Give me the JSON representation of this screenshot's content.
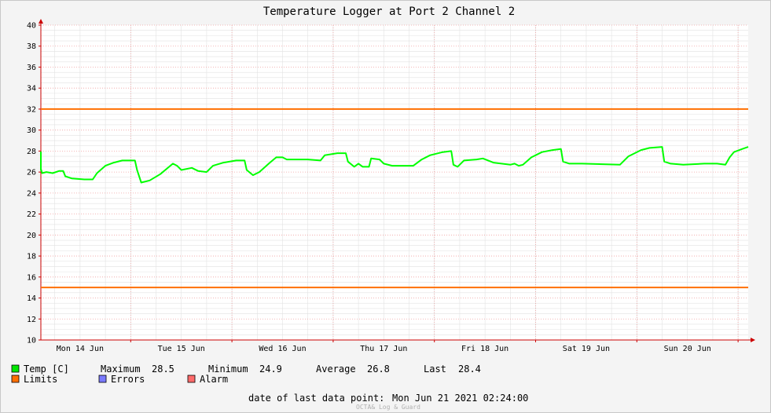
{
  "chart_data": {
    "type": "line",
    "title": "Temperature Logger at Port 2 Channel 2",
    "ylim": [
      10,
      40
    ],
    "yticks": [
      "10",
      "12",
      "14",
      "16",
      "18",
      "20",
      "22",
      "24",
      "26",
      "28",
      "30",
      "32",
      "34",
      "36",
      "38",
      "40"
    ],
    "x_range": [
      "Mon Jun 14 2021 00:00",
      "Mon Jun 21 2021 02:24"
    ],
    "x_day_labels": [
      "Mon 14 Jun",
      "Tue 15 Jun",
      "Wed 16 Jun",
      "Thu 17 Jun",
      "Fri 18 Jun",
      "Sat 19 Jun",
      "Sun 20 Jun"
    ],
    "grid": true,
    "series": [
      {
        "name": "Temp [C]",
        "color": "#00ff00",
        "points": [
          [
            "06-13 21:00",
            27.8
          ],
          [
            "06-13 23:00",
            27.8
          ],
          [
            "06-14 00:00",
            27.9
          ],
          [
            "06-14 00:30",
            27.0
          ],
          [
            "06-14 01:30",
            26.2
          ],
          [
            "06-14 02:30",
            26.3
          ],
          [
            "06-14 03:00",
            25.9
          ],
          [
            "06-14 04:00",
            26.0
          ],
          [
            "06-14 05:30",
            25.9
          ],
          [
            "06-14 07:00",
            26.1
          ],
          [
            "06-14 08:00",
            26.1
          ],
          [
            "06-14 08:30",
            25.6
          ],
          [
            "06-14 10:00",
            25.4
          ],
          [
            "06-14 13:00",
            25.3
          ],
          [
            "06-14 15:00",
            25.3
          ],
          [
            "06-14 16:00",
            25.9
          ],
          [
            "06-14 18:00",
            26.6
          ],
          [
            "06-14 20:00",
            26.9
          ],
          [
            "06-14 22:00",
            27.1
          ],
          [
            "06-15 01:00",
            27.1
          ],
          [
            "06-15 01:30",
            26.2
          ],
          [
            "06-15 02:30",
            25.0
          ],
          [
            "06-15 04:30",
            25.2
          ],
          [
            "06-15 07:00",
            25.8
          ],
          [
            "06-15 10:00",
            26.8
          ],
          [
            "06-15 11:00",
            26.6
          ],
          [
            "06-15 12:00",
            26.2
          ],
          [
            "06-15 14:30",
            26.4
          ],
          [
            "06-15 16:00",
            26.1
          ],
          [
            "06-15 18:00",
            26.0
          ],
          [
            "06-15 19:30",
            26.6
          ],
          [
            "06-15 22:00",
            26.9
          ],
          [
            "06-16 01:00",
            27.1
          ],
          [
            "06-16 03:00",
            27.1
          ],
          [
            "06-16 03:30",
            26.2
          ],
          [
            "06-16 05:00",
            25.7
          ],
          [
            "06-16 06:30",
            26.0
          ],
          [
            "06-16 09:00",
            26.9
          ],
          [
            "06-16 10:30",
            27.4
          ],
          [
            "06-16 12:00",
            27.4
          ],
          [
            "06-16 13:00",
            27.2
          ],
          [
            "06-16 18:00",
            27.2
          ],
          [
            "06-16 21:00",
            27.1
          ],
          [
            "06-16 22:00",
            27.6
          ],
          [
            "06-17 01:00",
            27.8
          ],
          [
            "06-17 03:00",
            27.8
          ],
          [
            "06-17 03:30",
            27.0
          ],
          [
            "06-17 05:00",
            26.5
          ],
          [
            "06-17 06:00",
            26.8
          ],
          [
            "06-17 07:00",
            26.5
          ],
          [
            "06-17 08:30",
            26.5
          ],
          [
            "06-17 09:00",
            27.3
          ],
          [
            "06-17 11:00",
            27.2
          ],
          [
            "06-17 12:00",
            26.8
          ],
          [
            "06-17 14:00",
            26.6
          ],
          [
            "06-17 19:00",
            26.6
          ],
          [
            "06-17 21:00",
            27.2
          ],
          [
            "06-17 23:00",
            27.6
          ],
          [
            "06-18 02:00",
            27.9
          ],
          [
            "06-18 04:00",
            28.0
          ],
          [
            "06-18 04:30",
            26.7
          ],
          [
            "06-18 05:30",
            26.5
          ],
          [
            "06-18 07:00",
            27.1
          ],
          [
            "06-18 10:00",
            27.2
          ],
          [
            "06-18 11:30",
            27.3
          ],
          [
            "06-18 14:00",
            26.9
          ],
          [
            "06-18 18:00",
            26.7
          ],
          [
            "06-18 19:00",
            26.8
          ],
          [
            "06-18 20:00",
            26.6
          ],
          [
            "06-18 21:00",
            26.7
          ],
          [
            "06-18 23:00",
            27.4
          ],
          [
            "06-19 01:30",
            27.9
          ],
          [
            "06-19 04:00",
            28.1
          ],
          [
            "06-19 06:00",
            28.2
          ],
          [
            "06-19 06:30",
            27.0
          ],
          [
            "06-19 08:00",
            26.8
          ],
          [
            "06-19 11:00",
            26.8
          ],
          [
            "06-19 20:00",
            26.7
          ],
          [
            "06-19 22:00",
            27.5
          ],
          [
            "06-20 01:00",
            28.1
          ],
          [
            "06-20 03:00",
            28.3
          ],
          [
            "06-20 06:00",
            28.4
          ],
          [
            "06-20 06:30",
            27.0
          ],
          [
            "06-20 08:00",
            26.8
          ],
          [
            "06-20 11:00",
            26.7
          ],
          [
            "06-20 16:00",
            26.8
          ],
          [
            "06-20 19:00",
            26.8
          ],
          [
            "06-20 21:00",
            26.7
          ],
          [
            "06-20 22:00",
            27.4
          ],
          [
            "06-20 23:00",
            27.9
          ],
          [
            "06-21 01:00",
            28.2
          ],
          [
            "06-21 02:24",
            28.4
          ]
        ]
      }
    ],
    "limits": {
      "name": "Limits",
      "color": "#ff6f00",
      "values": [
        32,
        15
      ]
    },
    "legend": [
      {
        "name": "Temp [C]",
        "color": "#00e600"
      },
      {
        "name": "Limits",
        "color": "#ff6f00"
      },
      {
        "name": "Errors",
        "color": "#7a7aff"
      },
      {
        "name": "Alarm",
        "color": "#ff6a6a"
      }
    ],
    "stats": {
      "maximum_label": "Maximum",
      "maximum": "28.5",
      "minimum_label": "Minimum",
      "minimum": "24.9",
      "average_label": "Average",
      "average": "26.8",
      "last_label": "Last",
      "last": "28.4"
    },
    "last_point_label": "date of last data point:",
    "last_point_value": "Mon Jun 21 2021 02:24:00",
    "watermark": "OCTA& Log & Guard"
  }
}
